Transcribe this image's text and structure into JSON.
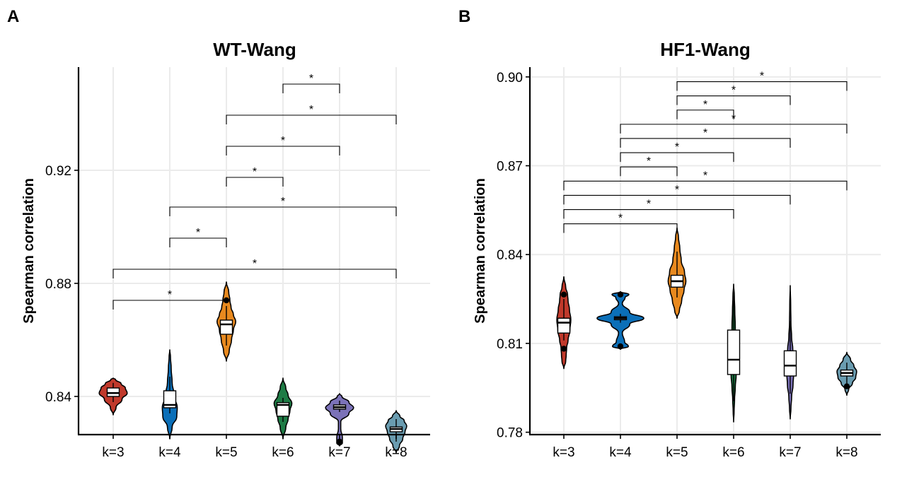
{
  "chart_data": [
    {
      "type": "violin",
      "panel": "A",
      "title": "WT-Wang",
      "xlabel": "",
      "ylabel": "Spearman correlation",
      "ylim": [
        0.8265,
        0.9565
      ],
      "yticks": [
        0.84,
        0.88,
        0.92
      ],
      "ytick_labels": [
        "0.84",
        "0.88",
        "0.92"
      ],
      "grid": true,
      "categories": [
        "k=3",
        "k=4",
        "k=5",
        "k=6",
        "k=7",
        "k=8"
      ],
      "series": [
        {
          "category": "k=3",
          "color": "#C0392B",
          "min": 0.8335,
          "max": 0.8465,
          "q1": 0.84,
          "median": 0.8412,
          "q3": 0.843,
          "whisker_low": 0.838,
          "whisker_high": 0.8448,
          "outliers": [],
          "density": [
            [
              0.8335,
              0.0
            ],
            [
              0.836,
              0.12
            ],
            [
              0.839,
              0.38
            ],
            [
              0.8412,
              0.6
            ],
            [
              0.843,
              0.52
            ],
            [
              0.8445,
              0.34
            ],
            [
              0.846,
              0.1
            ],
            [
              0.8465,
              0.0
            ]
          ]
        },
        {
          "category": "k=4",
          "color": "#0B6FB8",
          "min": 0.825,
          "max": 0.8565,
          "q1": 0.836,
          "median": 0.837,
          "q3": 0.842,
          "whisker_low": 0.834,
          "whisker_high": 0.847,
          "outliers": [],
          "density": [
            [
              0.825,
              0.0
            ],
            [
              0.829,
              0.1
            ],
            [
              0.833,
              0.3
            ],
            [
              0.836,
              0.32
            ],
            [
              0.84,
              0.2
            ],
            [
              0.845,
              0.1
            ],
            [
              0.85,
              0.06
            ],
            [
              0.854,
              0.03
            ],
            [
              0.8565,
              0.0
            ]
          ]
        },
        {
          "category": "k=5",
          "color": "#E8891E",
          "min": 0.8525,
          "max": 0.8805,
          "q1": 0.862,
          "median": 0.8655,
          "q3": 0.867,
          "whisker_low": 0.858,
          "whisker_high": 0.872,
          "outliers": [
            0.874
          ],
          "density": [
            [
              0.8525,
              0.0
            ],
            [
              0.856,
              0.12
            ],
            [
              0.86,
              0.22
            ],
            [
              0.8635,
              0.3
            ],
            [
              0.8665,
              0.4
            ],
            [
              0.869,
              0.3
            ],
            [
              0.8715,
              0.2
            ],
            [
              0.874,
              0.15
            ],
            [
              0.877,
              0.1
            ],
            [
              0.8805,
              0.0
            ]
          ]
        },
        {
          "category": "k=6",
          "color": "#1E7B45",
          "min": 0.825,
          "max": 0.8465,
          "q1": 0.833,
          "median": 0.837,
          "q3": 0.8378,
          "whisker_low": 0.831,
          "whisker_high": 0.8395,
          "outliers": [],
          "density": [
            [
              0.825,
              0.0
            ],
            [
              0.829,
              0.12
            ],
            [
              0.832,
              0.22
            ],
            [
              0.835,
              0.3
            ],
            [
              0.8375,
              0.38
            ],
            [
              0.8405,
              0.22
            ],
            [
              0.843,
              0.12
            ],
            [
              0.8465,
              0.0
            ]
          ]
        },
        {
          "category": "k=7",
          "color": "#7B72B8",
          "min": 0.8225,
          "max": 0.841,
          "q1": 0.8355,
          "median": 0.8362,
          "q3": 0.837,
          "whisker_low": 0.8345,
          "whisker_high": 0.8385,
          "outliers": [
            0.824
          ],
          "density": [
            [
              0.8225,
              0.0
            ],
            [
              0.8235,
              0.12
            ],
            [
              0.8255,
              0.12
            ],
            [
              0.8285,
              0.05
            ],
            [
              0.831,
              0.05
            ],
            [
              0.834,
              0.4
            ],
            [
              0.836,
              0.6
            ],
            [
              0.838,
              0.4
            ],
            [
              0.84,
              0.1
            ],
            [
              0.841,
              0.0
            ]
          ]
        },
        {
          "category": "k=8",
          "color": "#6A9CB0",
          "min": 0.82,
          "max": 0.835,
          "q1": 0.8275,
          "median": 0.8285,
          "q3": 0.8292,
          "whisker_low": 0.824,
          "whisker_high": 0.832,
          "outliers": [],
          "density": [
            [
              0.82,
              0.0
            ],
            [
              0.8225,
              0.14
            ],
            [
              0.825,
              0.28
            ],
            [
              0.8275,
              0.38
            ],
            [
              0.8295,
              0.45
            ],
            [
              0.8315,
              0.34
            ],
            [
              0.833,
              0.16
            ],
            [
              0.835,
              0.0
            ]
          ]
        }
      ],
      "significance": [
        {
          "from": "k=7",
          "to": "k=6",
          "y": 0.9505,
          "label": "*"
        },
        {
          "from": "k=5",
          "to": "k=8",
          "y": 0.9395,
          "label": "*"
        },
        {
          "from": "k=5",
          "to": "k=7",
          "y": 0.9285,
          "label": "*"
        },
        {
          "from": "k=5",
          "to": "k=6",
          "y": 0.9175,
          "label": "*"
        },
        {
          "from": "k=4",
          "to": "k=8",
          "y": 0.907,
          "label": "*"
        },
        {
          "from": "k=4",
          "to": "k=5",
          "y": 0.896,
          "label": "*"
        },
        {
          "from": "k=3",
          "to": "k=8",
          "y": 0.885,
          "label": "*"
        },
        {
          "from": "k=3",
          "to": "k=5",
          "y": 0.874,
          "label": "*"
        }
      ]
    },
    {
      "type": "violin",
      "panel": "B",
      "title": "HF1-Wang",
      "xlabel": "",
      "ylabel": "Spearman correlation",
      "ylim": [
        0.7792,
        0.9033
      ],
      "yticks": [
        0.78,
        0.81,
        0.84,
        0.87,
        0.9
      ],
      "ytick_labels": [
        "0.78",
        "0.81",
        "0.84",
        "0.87",
        "0.90"
      ],
      "grid": true,
      "categories": [
        "k=3",
        "k=4",
        "k=5",
        "k=6",
        "k=7",
        "k=8"
      ],
      "series": [
        {
          "category": "k=3",
          "color": "#C0392B",
          "min": 0.8015,
          "max": 0.8325,
          "q1": 0.8135,
          "median": 0.817,
          "q3": 0.8185,
          "whisker_low": 0.811,
          "whisker_high": 0.825,
          "outliers": [
            0.8082,
            0.8265
          ],
          "density": [
            [
              0.8015,
              0.0
            ],
            [
              0.804,
              0.08
            ],
            [
              0.806,
              0.1
            ],
            [
              0.8085,
              0.12
            ],
            [
              0.811,
              0.18
            ],
            [
              0.8145,
              0.26
            ],
            [
              0.818,
              0.3
            ],
            [
              0.8215,
              0.24
            ],
            [
              0.8245,
              0.18
            ],
            [
              0.8265,
              0.16
            ],
            [
              0.829,
              0.08
            ],
            [
              0.8325,
              0.0
            ]
          ]
        },
        {
          "category": "k=4",
          "color": "#0B6FB8",
          "min": 0.808,
          "max": 0.8275,
          "q1": 0.818,
          "median": 0.8185,
          "q3": 0.819,
          "whisker_low": 0.817,
          "whisker_high": 0.82,
          "outliers": [
            0.809,
            0.8265
          ],
          "density": [
            [
              0.808,
              0.0
            ],
            [
              0.809,
              0.34
            ],
            [
              0.8105,
              0.18
            ],
            [
              0.8135,
              0.08
            ],
            [
              0.8165,
              0.4
            ],
            [
              0.8185,
              1.0
            ],
            [
              0.8205,
              0.4
            ],
            [
              0.8235,
              0.08
            ],
            [
              0.8255,
              0.2
            ],
            [
              0.8265,
              0.36
            ],
            [
              0.8275,
              0.0
            ]
          ]
        },
        {
          "category": "k=5",
          "color": "#E8891E",
          "min": 0.8185,
          "max": 0.849,
          "q1": 0.829,
          "median": 0.831,
          "q3": 0.833,
          "whisker_low": 0.8255,
          "whisker_high": 0.841,
          "outliers": [],
          "density": [
            [
              0.8185,
              0.0
            ],
            [
              0.821,
              0.1
            ],
            [
              0.8245,
              0.2
            ],
            [
              0.828,
              0.3
            ],
            [
              0.831,
              0.38
            ],
            [
              0.834,
              0.32
            ],
            [
              0.838,
              0.18
            ],
            [
              0.842,
              0.12
            ],
            [
              0.846,
              0.06
            ],
            [
              0.849,
              0.0
            ]
          ]
        },
        {
          "category": "k=6",
          "color": "#1E7B45",
          "min": 0.7835,
          "max": 0.83,
          "q1": 0.7995,
          "median": 0.8045,
          "q3": 0.8145,
          "whisker_low": 0.7905,
          "whisker_high": 0.826,
          "outliers": [],
          "density": [
            [
              0.7835,
              0.0
            ],
            [
              0.787,
              0.02
            ],
            [
              0.791,
              0.04
            ],
            [
              0.795,
              0.07
            ],
            [
              0.7995,
              0.11
            ],
            [
              0.803,
              0.13
            ],
            [
              0.807,
              0.11
            ],
            [
              0.811,
              0.09
            ],
            [
              0.816,
              0.07
            ],
            [
              0.821,
              0.05
            ],
            [
              0.826,
              0.03
            ],
            [
              0.83,
              0.0
            ]
          ]
        },
        {
          "category": "k=7",
          "color": "#7B72B8",
          "min": 0.7845,
          "max": 0.8295,
          "q1": 0.799,
          "median": 0.8025,
          "q3": 0.8075,
          "whisker_low": 0.793,
          "whisker_high": 0.8175,
          "outliers": [],
          "density": [
            [
              0.7845,
              0.0
            ],
            [
              0.788,
              0.03
            ],
            [
              0.792,
              0.06
            ],
            [
              0.796,
              0.12
            ],
            [
              0.8,
              0.15
            ],
            [
              0.804,
              0.15
            ],
            [
              0.808,
              0.11
            ],
            [
              0.812,
              0.06
            ],
            [
              0.817,
              0.03
            ],
            [
              0.823,
              0.02
            ],
            [
              0.8295,
              0.0
            ]
          ]
        },
        {
          "category": "k=8",
          "color": "#6A9CB0",
          "min": 0.7925,
          "max": 0.807,
          "q1": 0.799,
          "median": 0.8,
          "q3": 0.801,
          "whisker_low": 0.7965,
          "whisker_high": 0.8035,
          "outliers": [
            0.7955
          ],
          "density": [
            [
              0.7925,
              0.0
            ],
            [
              0.7945,
              0.08
            ],
            [
              0.7965,
              0.24
            ],
            [
              0.7985,
              0.38
            ],
            [
              0.8005,
              0.42
            ],
            [
              0.8025,
              0.3
            ],
            [
              0.8045,
              0.16
            ],
            [
              0.807,
              0.0
            ]
          ]
        }
      ],
      "significance": [
        {
          "from": "k=5",
          "to": "k=8",
          "y": 0.8984,
          "label": "*"
        },
        {
          "from": "k=5",
          "to": "k=7",
          "y": 0.8936,
          "label": "*"
        },
        {
          "from": "k=5",
          "to": "k=6",
          "y": 0.8888,
          "label": "*"
        },
        {
          "from": "k=4",
          "to": "k=8",
          "y": 0.884,
          "label": "*"
        },
        {
          "from": "k=4",
          "to": "k=7",
          "y": 0.8792,
          "label": "*"
        },
        {
          "from": "k=4",
          "to": "k=6",
          "y": 0.8744,
          "label": "*"
        },
        {
          "from": "k=4",
          "to": "k=5",
          "y": 0.8696,
          "label": "*"
        },
        {
          "from": "k=3",
          "to": "k=8",
          "y": 0.8648,
          "label": "*"
        },
        {
          "from": "k=3",
          "to": "k=7",
          "y": 0.86,
          "label": "*"
        },
        {
          "from": "k=3",
          "to": "k=6",
          "y": 0.8552,
          "label": "*"
        },
        {
          "from": "k=3",
          "to": "k=5",
          "y": 0.8504,
          "label": "*"
        }
      ]
    }
  ]
}
